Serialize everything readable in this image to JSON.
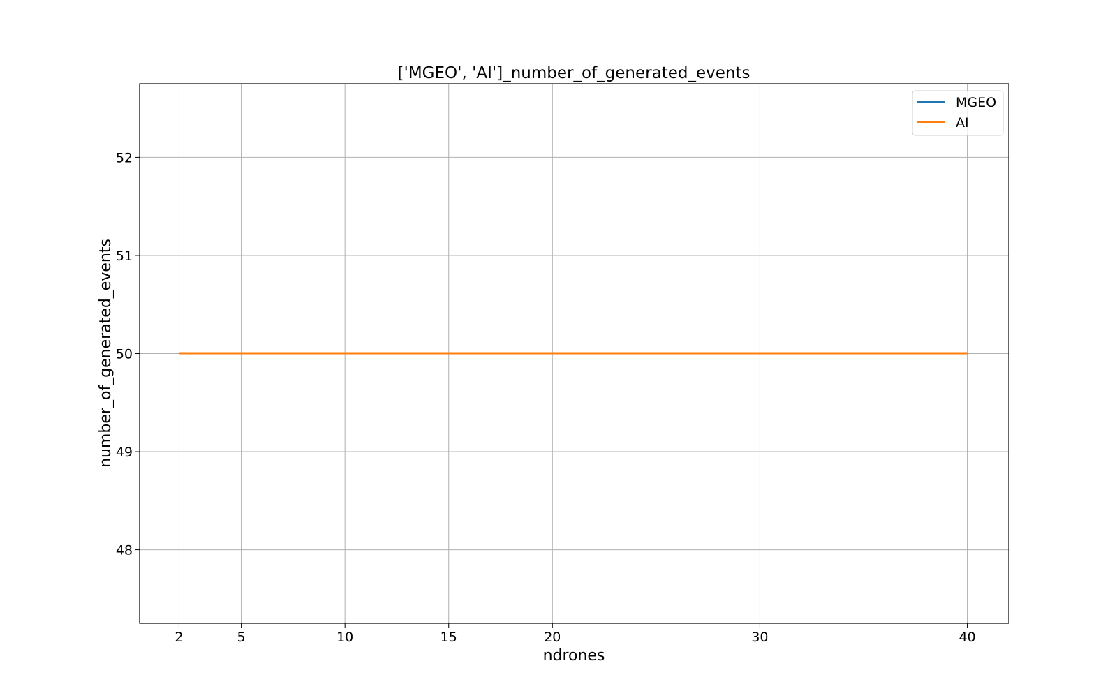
{
  "chart_data": {
    "type": "line",
    "title": "['MGEO', 'AI']_number_of_generated_events",
    "xlabel": "ndrones",
    "ylabel": "number_of_generated_events",
    "x": [
      2,
      5,
      10,
      15,
      20,
      30,
      40
    ],
    "xticks": [
      2,
      5,
      10,
      15,
      20,
      30,
      40
    ],
    "xtick_labels": [
      "2",
      "5",
      "10",
      "15",
      "20",
      "30",
      "40"
    ],
    "yticks": [
      48,
      49,
      50,
      51,
      52
    ],
    "ytick_labels": [
      "48",
      "49",
      "50",
      "51",
      "52"
    ],
    "xlim": [
      0.1,
      42.0
    ],
    "ylim": [
      47.25,
      52.75
    ],
    "grid": true,
    "legend_position": "top-right",
    "series": [
      {
        "name": "MGEO",
        "color": "#1f77b4",
        "values": [
          50,
          50,
          50,
          50,
          50,
          50,
          50
        ]
      },
      {
        "name": "AI",
        "color": "#ff7f0e",
        "values": [
          50,
          50,
          50,
          50,
          50,
          50,
          50
        ]
      }
    ]
  }
}
